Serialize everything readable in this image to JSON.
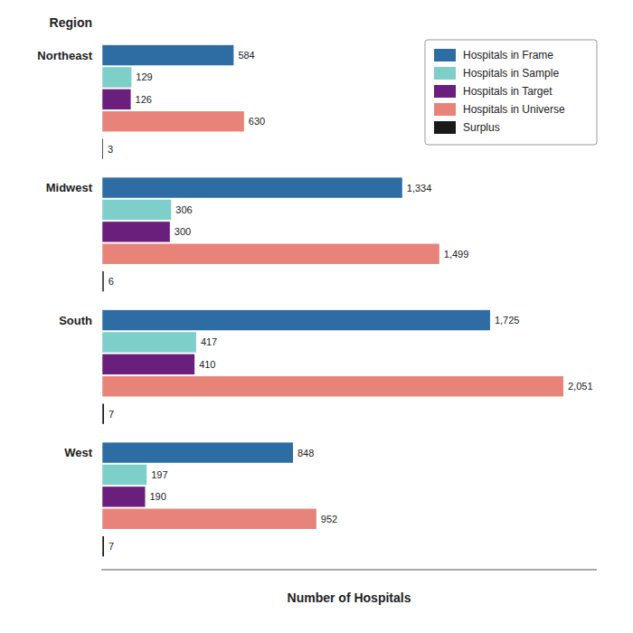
{
  "chart_data": {
    "type": "bar",
    "orientation": "horizontal",
    "title": "Region",
    "xlabel": "Number of Hospitals",
    "categories": [
      "Northeast",
      "Midwest",
      "South",
      "West"
    ],
    "series": [
      {
        "name": "Hospitals in Frame",
        "color": "#2E6DA4",
        "values": [
          584,
          1334,
          1725,
          848
        ],
        "value_labels": [
          "584",
          "1,334",
          "1,725",
          "848"
        ]
      },
      {
        "name": "Hospitals in Sample",
        "color": "#7ECECA",
        "values": [
          129,
          306,
          417,
          197
        ],
        "value_labels": [
          "129",
          "306",
          "417",
          "197"
        ]
      },
      {
        "name": "Hospitals in Target",
        "color": "#6B1F7C",
        "values": [
          126,
          300,
          410,
          190
        ],
        "value_labels": [
          "126",
          "300",
          "410",
          "190"
        ]
      },
      {
        "name": "Hospitals in Universe",
        "color": "#E8837A",
        "values": [
          630,
          1499,
          2051,
          952
        ],
        "value_labels": [
          "630",
          "1,499",
          "2,051",
          "952"
        ]
      },
      {
        "name": "Surplus",
        "color": "#1A1A1A",
        "values": [
          3,
          6,
          7,
          7
        ],
        "value_labels": [
          "3",
          "6",
          "7",
          "7"
        ]
      }
    ],
    "xlim": [
      -5,
      2200
    ],
    "data_labels": true,
    "tick_labels": false,
    "legend": "upper right",
    "grid": false
  }
}
